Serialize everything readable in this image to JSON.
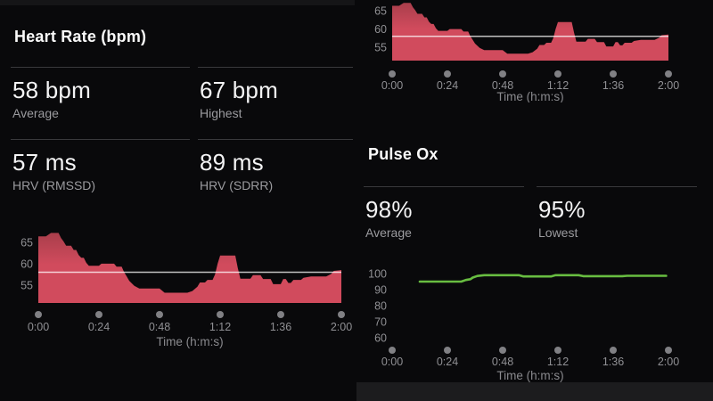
{
  "heart_rate": {
    "title": "Heart Rate (bpm)",
    "stats": [
      {
        "value": "58 bpm",
        "label": "Average"
      },
      {
        "value": "67 bpm",
        "label": "Highest"
      },
      {
        "value": "57 ms",
        "label": "HRV (RMSSD)"
      },
      {
        "value": "89 ms",
        "label": "HRV (SDRR)"
      }
    ]
  },
  "pulse_ox": {
    "title": "Pulse Ox",
    "stats": [
      {
        "value": "98%",
        "label": "Average"
      },
      {
        "value": "95%",
        "label": "Lowest"
      }
    ]
  },
  "colors": {
    "heart_rate_fill": "#d04a5b",
    "heart_rate_fill_dark": "#a93e4b",
    "pulse_ox_line": "#68bd41",
    "average_line": "rgba(255,255,255,0.75)",
    "tick_dot": "#808084",
    "divider": "#39393c",
    "bottom_strip": "#1c1c1e"
  },
  "chart_data": [
    {
      "type": "area",
      "title": "",
      "xlabel": "Time (h:m:s)",
      "ylabel": "",
      "xlim": [
        0,
        120
      ],
      "ylim": [
        50.8,
        67.9
      ],
      "yticks": [
        55,
        60,
        65
      ],
      "xticks": [
        {
          "t": 0,
          "label": "0:00"
        },
        {
          "t": 24,
          "label": "0:24"
        },
        {
          "t": 48,
          "label": "0:48"
        },
        {
          "t": 72,
          "label": "1:12"
        },
        {
          "t": 96,
          "label": "1:36"
        },
        {
          "t": 120,
          "label": "2:00"
        }
      ],
      "average": 58,
      "color": "#d04a5b",
      "gradient": [
        "#a93e4b",
        "#d14b5d"
      ],
      "series": [
        [
          0,
          66.4
        ],
        [
          3,
          66.4
        ],
        [
          5,
          67.2
        ],
        [
          8,
          67.2
        ],
        [
          9,
          66
        ],
        [
          10,
          65.2
        ],
        [
          11,
          64.2
        ],
        [
          13,
          64.2
        ],
        [
          14,
          63.2
        ],
        [
          15,
          63.2
        ],
        [
          16,
          62
        ],
        [
          17,
          61.4
        ],
        [
          18,
          61.4
        ],
        [
          19,
          60.2
        ],
        [
          20,
          59.5
        ],
        [
          24,
          59.5
        ],
        [
          25,
          60
        ],
        [
          30,
          60
        ],
        [
          31,
          59.3
        ],
        [
          33,
          59.3
        ],
        [
          34,
          58
        ],
        [
          35,
          57
        ],
        [
          36,
          56
        ],
        [
          38,
          54.8
        ],
        [
          40,
          54.2
        ],
        [
          48,
          54.2
        ],
        [
          50,
          53.2
        ],
        [
          59,
          53.2
        ],
        [
          61,
          53.6
        ],
        [
          63,
          54.6
        ],
        [
          64,
          55.6
        ],
        [
          66,
          55.6
        ],
        [
          67,
          56.2
        ],
        [
          69,
          56.2
        ],
        [
          70,
          57.5
        ],
        [
          71,
          60
        ],
        [
          72,
          61.9
        ],
        [
          78,
          61.9
        ],
        [
          79,
          59
        ],
        [
          80,
          56.5
        ],
        [
          84,
          56.5
        ],
        [
          85,
          57.3
        ],
        [
          88,
          57.3
        ],
        [
          89,
          56.4
        ],
        [
          92,
          56.4
        ],
        [
          93,
          55.2
        ],
        [
          96,
          55.2
        ],
        [
          97,
          56.4
        ],
        [
          98,
          56.4
        ],
        [
          99,
          55.5
        ],
        [
          100,
          55.5
        ],
        [
          101,
          56.2
        ],
        [
          104,
          56.2
        ],
        [
          105,
          56.7
        ],
        [
          108,
          57
        ],
        [
          114,
          57
        ],
        [
          116,
          57.6
        ],
        [
          117,
          58.3
        ],
        [
          120,
          58.5
        ]
      ]
    },
    {
      "type": "area",
      "title": "",
      "xlabel": "Time (h:m:s)",
      "ylabel": "",
      "xlim": [
        0,
        120
      ],
      "ylim": [
        51.3,
        68.0
      ],
      "yticks": [
        55,
        60,
        65
      ],
      "xticks": [
        {
          "t": 0,
          "label": "0:00"
        },
        {
          "t": 24,
          "label": "0:24"
        },
        {
          "t": 48,
          "label": "0:48"
        },
        {
          "t": 72,
          "label": "1:12"
        },
        {
          "t": 96,
          "label": "1:36"
        },
        {
          "t": 120,
          "label": "2:00"
        }
      ],
      "average": 58,
      "color": "#d04a5b",
      "gradient": [
        "#a93e4b",
        "#d14b5d"
      ],
      "series": [
        [
          0,
          66.4
        ],
        [
          3,
          66.4
        ],
        [
          5,
          67.2
        ],
        [
          8,
          67.2
        ],
        [
          9,
          66
        ],
        [
          10,
          65.2
        ],
        [
          11,
          64.2
        ],
        [
          13,
          64.2
        ],
        [
          14,
          63.2
        ],
        [
          15,
          63.2
        ],
        [
          16,
          62
        ],
        [
          17,
          61.4
        ],
        [
          18,
          61.4
        ],
        [
          19,
          60.2
        ],
        [
          20,
          59.5
        ],
        [
          24,
          59.5
        ],
        [
          25,
          60
        ],
        [
          30,
          60
        ],
        [
          31,
          59.3
        ],
        [
          33,
          59.3
        ],
        [
          34,
          58
        ],
        [
          35,
          57
        ],
        [
          36,
          56
        ],
        [
          38,
          54.8
        ],
        [
          40,
          54.2
        ],
        [
          48,
          54.2
        ],
        [
          50,
          53.2
        ],
        [
          59,
          53.2
        ],
        [
          61,
          53.6
        ],
        [
          63,
          54.6
        ],
        [
          64,
          55.6
        ],
        [
          66,
          55.6
        ],
        [
          67,
          56.2
        ],
        [
          69,
          56.2
        ],
        [
          70,
          57.5
        ],
        [
          71,
          60
        ],
        [
          72,
          61.9
        ],
        [
          78,
          61.9
        ],
        [
          79,
          59
        ],
        [
          80,
          56.5
        ],
        [
          84,
          56.5
        ],
        [
          85,
          57.3
        ],
        [
          88,
          57.3
        ],
        [
          89,
          56.4
        ],
        [
          92,
          56.4
        ],
        [
          93,
          55.2
        ],
        [
          96,
          55.2
        ],
        [
          97,
          56.4
        ],
        [
          98,
          56.4
        ],
        [
          99,
          55.5
        ],
        [
          100,
          55.5
        ],
        [
          101,
          56.2
        ],
        [
          104,
          56.2
        ],
        [
          105,
          56.7
        ],
        [
          108,
          57
        ],
        [
          114,
          57
        ],
        [
          116,
          57.6
        ],
        [
          117,
          58.3
        ],
        [
          120,
          58.5
        ]
      ]
    },
    {
      "type": "line",
      "title": "",
      "xlabel": "Time (h:m:s)",
      "ylabel": "",
      "xlim": [
        0,
        120
      ],
      "ylim": [
        60,
        100
      ],
      "yticks": [
        60,
        70,
        80,
        90,
        100
      ],
      "xticks": [
        {
          "t": 0,
          "label": "0:00"
        },
        {
          "t": 24,
          "label": "0:24"
        },
        {
          "t": 48,
          "label": "0:48"
        },
        {
          "t": 72,
          "label": "1:12"
        },
        {
          "t": 96,
          "label": "1:36"
        },
        {
          "t": 120,
          "label": "2:00"
        }
      ],
      "average": null,
      "color": "#68bd41",
      "series": [
        [
          12,
          95
        ],
        [
          30,
          95
        ],
        [
          32,
          96
        ],
        [
          34,
          96.5
        ],
        [
          35,
          97.5
        ],
        [
          37,
          98.5
        ],
        [
          40,
          99
        ],
        [
          55,
          99
        ],
        [
          57,
          98.2
        ],
        [
          69,
          98.2
        ],
        [
          71,
          99
        ],
        [
          81,
          99
        ],
        [
          83,
          98.4
        ],
        [
          100,
          98.4
        ],
        [
          102,
          98.6
        ],
        [
          119,
          98.6
        ]
      ]
    }
  ]
}
